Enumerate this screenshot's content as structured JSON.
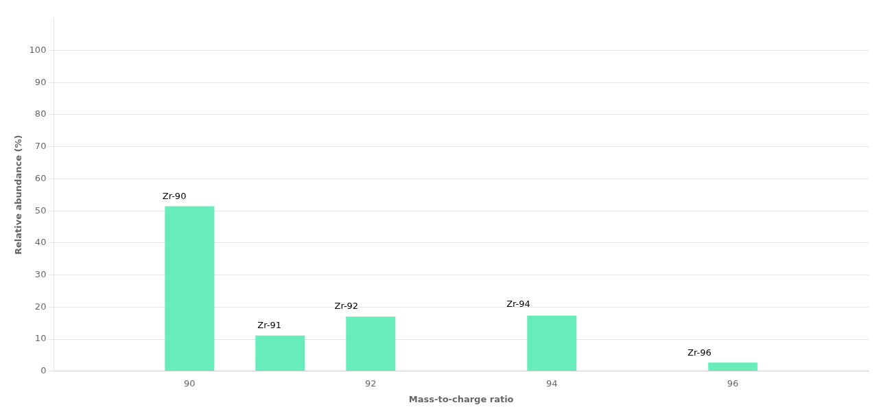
{
  "chart_data": {
    "type": "bar",
    "x": [
      90,
      91,
      92,
      94,
      96
    ],
    "values": [
      51.5,
      11.2,
      17.1,
      17.4,
      2.8
    ],
    "color": "#68EDBA",
    "xlabel": "Mass-to-charge ratio",
    "ylabel": "Relative abundance (%)",
    "xlim": [
      88.5,
      97.5
    ],
    "xticks": [
      90,
      92,
      94,
      96
    ],
    "ylim": [
      0,
      110
    ],
    "yticks": [
      0,
      10,
      20,
      30,
      40,
      50,
      60,
      70,
      80,
      90,
      100
    ],
    "grid": "y",
    "annotations": [
      {
        "text": "Zr-90",
        "x": 89.7,
        "y": 53.0
      },
      {
        "text": "Zr-91",
        "x": 90.75,
        "y": 12.8
      },
      {
        "text": "Zr-92",
        "x": 91.6,
        "y": 18.8
      },
      {
        "text": "Zr-94",
        "x": 93.5,
        "y": 19.5
      },
      {
        "text": "Zr-96",
        "x": 95.5,
        "y": 4.3
      }
    ]
  }
}
